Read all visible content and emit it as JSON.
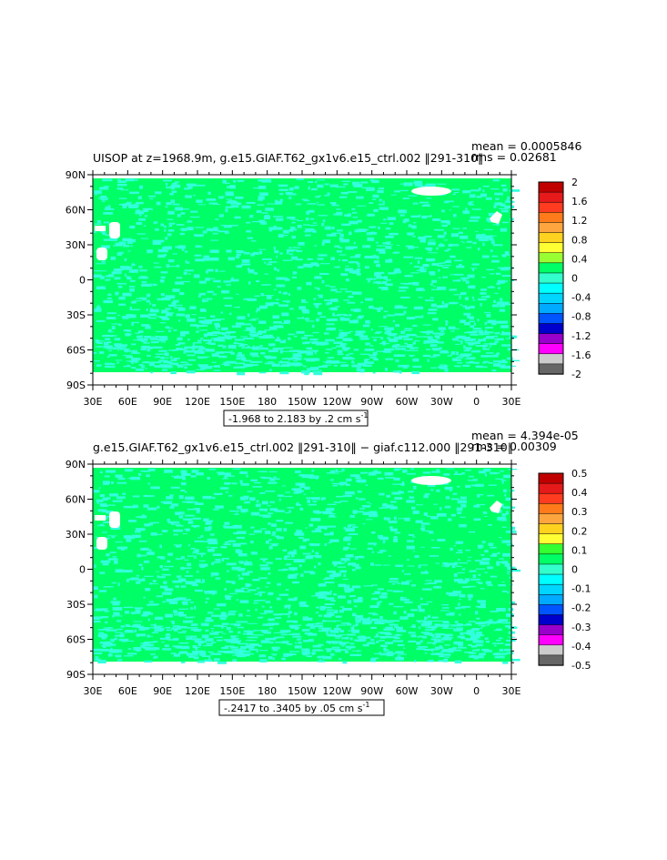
{
  "chart_data": [
    {
      "type": "heatmap",
      "title": "UISOP at z=1968.9m, g.e15.GIAF.T62_gx1v6.e15_ctrl.002 ‖291-310‖",
      "stat_mean": "mean = 0.0005846",
      "stat_rms": "rms = 0.02681",
      "range_label": "-1.968 to 2.183 by .2 cm s",
      "range_exponent": "-1",
      "x_ticks": [
        "30E",
        "60E",
        "90E",
        "120E",
        "150E",
        "180",
        "150W",
        "120W",
        "90W",
        "60W",
        "30W",
        "0",
        "30E"
      ],
      "y_ticks": [
        "90N",
        "60N",
        "30N",
        "0",
        "30S",
        "60S",
        "90S"
      ],
      "colorbar_labels": [
        "2",
        "1.6",
        "1.2",
        "0.8",
        "0.4",
        "0",
        "-0.4",
        "-0.8",
        "-1.2",
        "-1.6",
        "-2"
      ],
      "colorbar_colors": [
        "#c00000",
        "#e61a1a",
        "#ff3b20",
        "#ff7a1a",
        "#ffa540",
        "#ffd21f",
        "#ffff33",
        "#99ff33",
        "#00ff66",
        "#33ffcc",
        "#00ffff",
        "#00d5ff",
        "#00aaff",
        "#0055ff",
        "#0000cc",
        "#9900cc",
        "#ff00ff",
        "#cccccc",
        "#666666"
      ],
      "field_colors": {
        "background": "#00ff66",
        "anomaly": "#33ffdd",
        "land": "#ffffff"
      }
    },
    {
      "type": "heatmap",
      "title": "g.e15.GIAF.T62_gx1v6.e15_ctrl.002 ‖291-310‖ − giaf.c112.000 ‖291-310‖",
      "stat_mean": "mean = 4.394e-05",
      "stat_rms": "rms = 0.00309",
      "range_label": "-.2417 to .3405 by .05 cm s",
      "range_exponent": "-1",
      "x_ticks": [
        "30E",
        "60E",
        "90E",
        "120E",
        "150E",
        "180",
        "150W",
        "120W",
        "90W",
        "60W",
        "30W",
        "0",
        "30E"
      ],
      "y_ticks": [
        "90N",
        "60N",
        "30N",
        "0",
        "30S",
        "60S",
        "90S"
      ],
      "colorbar_labels": [
        "0.5",
        "0.4",
        "0.3",
        "0.2",
        "0.1",
        "0",
        "-0.1",
        "-0.2",
        "-0.3",
        "-0.4",
        "-0.5"
      ],
      "colorbar_colors": [
        "#c00000",
        "#e61a1a",
        "#ff3b20",
        "#ff7a1a",
        "#ffa540",
        "#ffd21f",
        "#ffff33",
        "#33ff33",
        "#00ff66",
        "#33ffcc",
        "#00ffff",
        "#00d5ff",
        "#00aaff",
        "#0055ff",
        "#0000cc",
        "#9900cc",
        "#ff00ff",
        "#cccccc",
        "#666666"
      ],
      "field_colors": {
        "background": "#00ff66",
        "anomaly": "#33ffdd",
        "land": "#ffffff"
      }
    }
  ]
}
